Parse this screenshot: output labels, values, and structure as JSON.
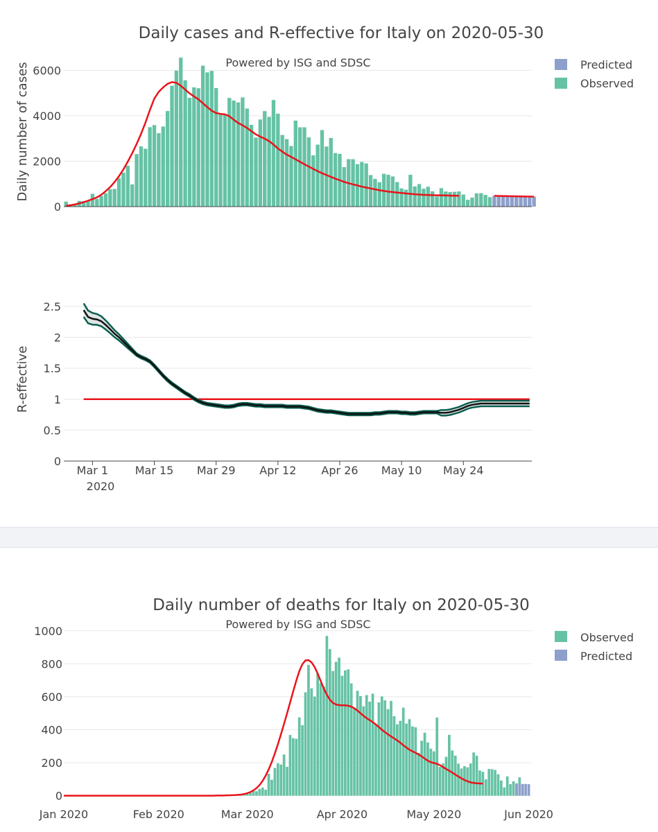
{
  "colors": {
    "observed": "#66c2a5",
    "predicted": "#8da0cb",
    "smooth": "#e8141a",
    "r_band": "#0b5e50",
    "r_line": "#111111",
    "grid": "#e8e8e8"
  },
  "chart_data": [
    {
      "id": "cases",
      "type": "bar",
      "title": "Daily cases and R-effective for Italy on 2020-05-30",
      "subtitle": "Powered by ISG and SDSC",
      "xlabel": "",
      "ylabel": "Daily number of cases",
      "ylim": [
        0,
        6500
      ],
      "yticks": [
        0,
        2000,
        4000,
        6000
      ],
      "x_start": "2020-02-24",
      "x_range_days": [
        -0.5,
        105.5
      ],
      "legend": [
        "Predicted",
        "Observed"
      ],
      "observed": [
        221,
        93,
        78,
        250,
        238,
        240,
        566,
        342,
        466,
        587,
        769,
        778,
        1247,
        1492,
        1797,
        977,
        2313,
        2651,
        2547,
        3497,
        3590,
        3233,
        3526,
        4207,
        5322,
        5986,
        6557,
        5560,
        4789,
        5249,
        5210,
        6203,
        5909,
        5974,
        5217,
        4050,
        4053,
        4782,
        4668,
        4585,
        4805,
        4316,
        3599,
        3039,
        3836,
        4204,
        3951,
        4694,
        4092,
        3153,
        2972,
        2667,
        3786,
        3493,
        3491,
        3047,
        2256,
        2729,
        3370,
        2646,
        3021,
        2357,
        2324,
        1739,
        2091,
        2086,
        1872,
        1965,
        1900,
        1389,
        1221,
        1075,
        1444,
        1401,
        1327,
        1083,
        802,
        744,
        1402,
        888,
        992,
        789,
        875,
        675,
        451,
        813,
        665,
        642,
        652,
        669,
        531,
        300,
        397,
        584,
        593,
        516,
        416
      ],
      "predicted": [
        480,
        470,
        460,
        455,
        450,
        448,
        445,
        440,
        438,
        435
      ],
      "smooth": [
        30,
        60,
        95,
        140,
        195,
        260,
        330,
        410,
        520,
        680,
        860,
        1080,
        1340,
        1640,
        1980,
        2350,
        2760,
        3200,
        3700,
        4250,
        4750,
        5050,
        5250,
        5400,
        5480,
        5450,
        5320,
        5150,
        4980,
        4850,
        4720,
        4550,
        4380,
        4220,
        4120,
        4080,
        4060,
        3980,
        3820,
        3680,
        3580,
        3460,
        3320,
        3180,
        3080,
        2990,
        2880,
        2730,
        2560,
        2420,
        2290,
        2190,
        2080,
        1970,
        1860,
        1760,
        1660,
        1560,
        1470,
        1390,
        1310,
        1230,
        1160,
        1090,
        1030,
        980,
        930,
        880,
        840,
        800,
        760,
        720,
        690,
        660,
        640,
        620,
        600,
        580,
        560,
        545,
        530,
        520,
        510,
        505,
        500,
        495,
        490,
        485,
        480,
        475
      ],
      "predicted_smooth": [
        475,
        470,
        466,
        462,
        458,
        454,
        450,
        446,
        443,
        440
      ]
    },
    {
      "id": "reff",
      "type": "line",
      "title": "",
      "xlabel": "",
      "ylabel": "R-effective",
      "ylim": [
        0,
        2.6
      ],
      "yticks": [
        0,
        0.5,
        1,
        1.5,
        2,
        2.5
      ],
      "xticks": [
        "Mar 1",
        "Mar 15",
        "Mar 29",
        "Apr 12",
        "Apr 26",
        "May 10",
        "May 24"
      ],
      "xtick_year": "2020",
      "start_day": 4,
      "end_day": 105,
      "reference_line": 1,
      "mean": [
        2.44,
        2.33,
        2.3,
        2.29,
        2.26,
        2.2,
        2.13,
        2.06,
        2.0,
        1.93,
        1.86,
        1.79,
        1.72,
        1.68,
        1.65,
        1.61,
        1.54,
        1.46,
        1.38,
        1.31,
        1.25,
        1.2,
        1.15,
        1.1,
        1.06,
        1.01,
        0.97,
        0.94,
        0.92,
        0.91,
        0.9,
        0.89,
        0.88,
        0.88,
        0.89,
        0.91,
        0.92,
        0.92,
        0.91,
        0.9,
        0.9,
        0.89,
        0.89,
        0.89,
        0.89,
        0.89,
        0.88,
        0.88,
        0.88,
        0.88,
        0.87,
        0.86,
        0.84,
        0.82,
        0.81,
        0.8,
        0.8,
        0.79,
        0.78,
        0.77,
        0.76,
        0.76,
        0.76,
        0.76,
        0.76,
        0.76,
        0.77,
        0.77,
        0.78,
        0.79,
        0.79,
        0.79,
        0.78,
        0.78,
        0.77,
        0.77,
        0.78,
        0.79,
        0.79,
        0.79,
        0.79,
        0.78,
        0.78,
        0.79,
        0.81,
        0.83,
        0.86,
        0.89,
        0.91,
        0.92,
        0.93,
        0.93,
        0.93,
        0.93,
        0.93,
        0.93,
        0.93,
        0.93,
        0.93,
        0.93,
        0.93,
        0.93
      ]
    },
    {
      "id": "deaths",
      "type": "bar",
      "title": "Daily number of deaths for Italy on 2020-05-30",
      "subtitle": "Powered by ISG and SDSC",
      "xlabel": "",
      "ylabel": "",
      "ylim": [
        -10,
        1020
      ],
      "yticks": [
        0,
        200,
        400,
        600,
        800,
        1000
      ],
      "x_start": "2020-01-01",
      "xticks": [
        {
          "label": "Jan 2020",
          "day": 0
        },
        {
          "label": "Feb 2020",
          "day": 31
        },
        {
          "label": "Mar 2020",
          "day": 60
        },
        {
          "label": "Apr 2020",
          "day": 91
        },
        {
          "label": "May 2020",
          "day": 121
        },
        {
          "label": "Jun 2020",
          "day": 152
        }
      ],
      "x_range_days": [
        0,
        153
      ],
      "legend": [
        "Observed",
        "Predicted"
      ],
      "observed_start_day": 51,
      "observed": [
        0,
        0,
        0,
        1,
        2,
        3,
        4,
        6,
        10,
        11,
        17,
        28,
        27,
        41,
        49,
        36,
        133,
        97,
        168,
        196,
        189,
        250,
        175,
        368,
        349,
        345,
        475,
        427,
        627,
        793,
        651,
        601,
        743,
        683,
        662,
        969,
        889,
        756,
        812,
        837,
        727,
        760,
        766,
        681,
        525,
        636,
        604,
        542,
        610,
        570,
        619,
        431,
        566,
        602,
        578,
        525,
        575,
        482,
        433,
        454,
        534,
        437,
        464,
        420,
        415,
        260,
        333,
        382,
        323,
        285,
        269,
        474,
        174,
        195,
        236,
        369,
        274,
        243,
        194,
        165,
        179,
        172,
        195,
        262,
        242,
        153,
        145,
        99,
        162,
        161,
        156,
        130,
        92,
        50,
        117,
        70,
        87,
        75,
        111,
        70
      ],
      "predicted_start_day": 148,
      "predicted": [
        72,
        72,
        71,
        71,
        70
      ],
      "smooth_start_day": 0,
      "smooth": [
        0,
        0,
        0,
        0,
        0,
        0,
        0,
        0,
        0,
        0,
        0,
        0,
        0,
        0,
        0,
        0,
        0,
        0,
        0,
        0,
        0,
        0,
        0,
        0,
        0,
        0,
        0,
        0,
        0,
        0,
        0,
        0,
        0,
        0,
        0,
        0,
        0,
        0,
        0,
        0,
        0,
        0,
        0,
        0,
        0,
        0,
        0,
        0,
        0,
        0,
        1,
        1,
        1,
        2,
        2,
        3,
        4,
        5,
        7,
        10,
        15,
        22,
        32,
        46,
        65,
        90,
        122,
        160,
        205,
        256,
        312,
        372,
        435,
        500,
        567,
        633,
        697,
        755,
        797,
        820,
        822,
        808,
        780,
        740,
        695,
        650,
        612,
        582,
        562,
        553,
        549,
        548,
        548,
        545,
        540,
        530,
        516,
        500,
        484,
        470,
        458,
        446,
        432,
        416,
        400,
        385,
        372,
        359,
        347,
        335,
        321,
        306,
        292,
        279,
        269,
        260,
        250,
        238,
        225,
        212,
        203,
        198,
        193,
        185,
        173,
        162,
        151,
        140,
        128,
        116,
        105,
        95,
        87,
        81,
        77,
        75,
        74,
        73
      ]
    }
  ]
}
